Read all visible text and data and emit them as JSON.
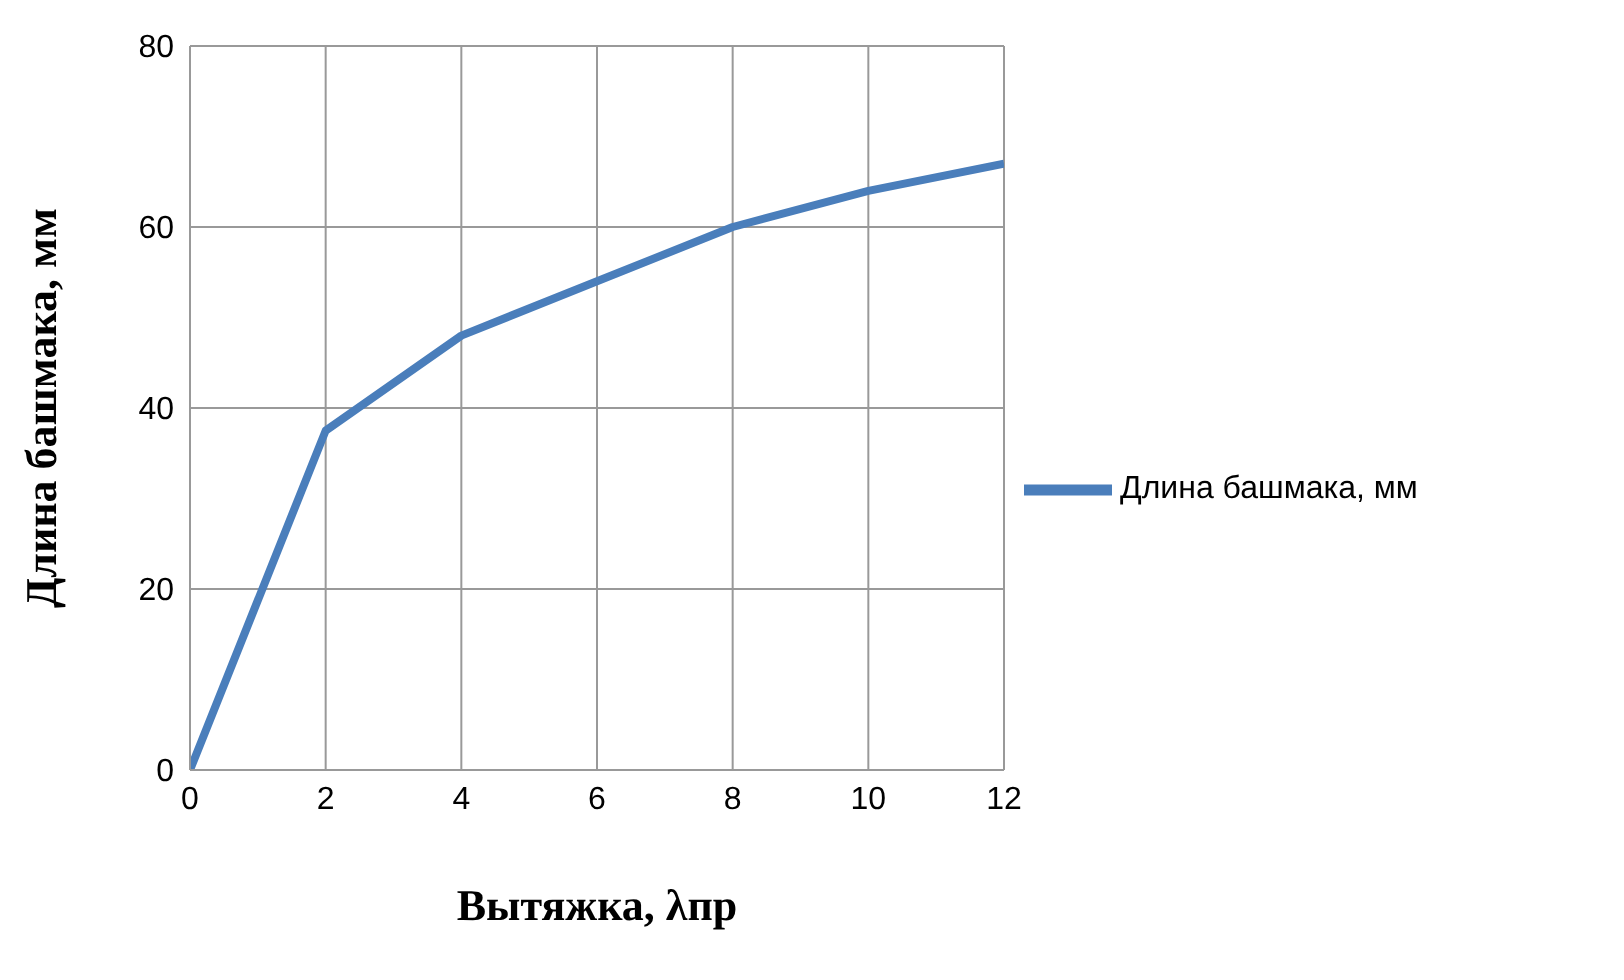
{
  "chart_data": {
    "type": "line",
    "xlabel": "Вытяжка, λпр",
    "ylabel": "Длина башмака, мм",
    "x": [
      0,
      2,
      4,
      6,
      8,
      10,
      12
    ],
    "series": [
      {
        "name": "Длина башмака, мм",
        "color": "#4a7ebb",
        "values": [
          0,
          37.5,
          48,
          54,
          60,
          64,
          67
        ]
      }
    ],
    "xlim": [
      0,
      12
    ],
    "xticks": [
      0,
      2,
      4,
      6,
      8,
      10,
      12
    ],
    "ylim": [
      0,
      80
    ],
    "yticks": [
      0,
      20,
      40,
      60,
      80
    ],
    "grid": true,
    "legend": "right",
    "marker": "none",
    "line_style": "solid"
  }
}
